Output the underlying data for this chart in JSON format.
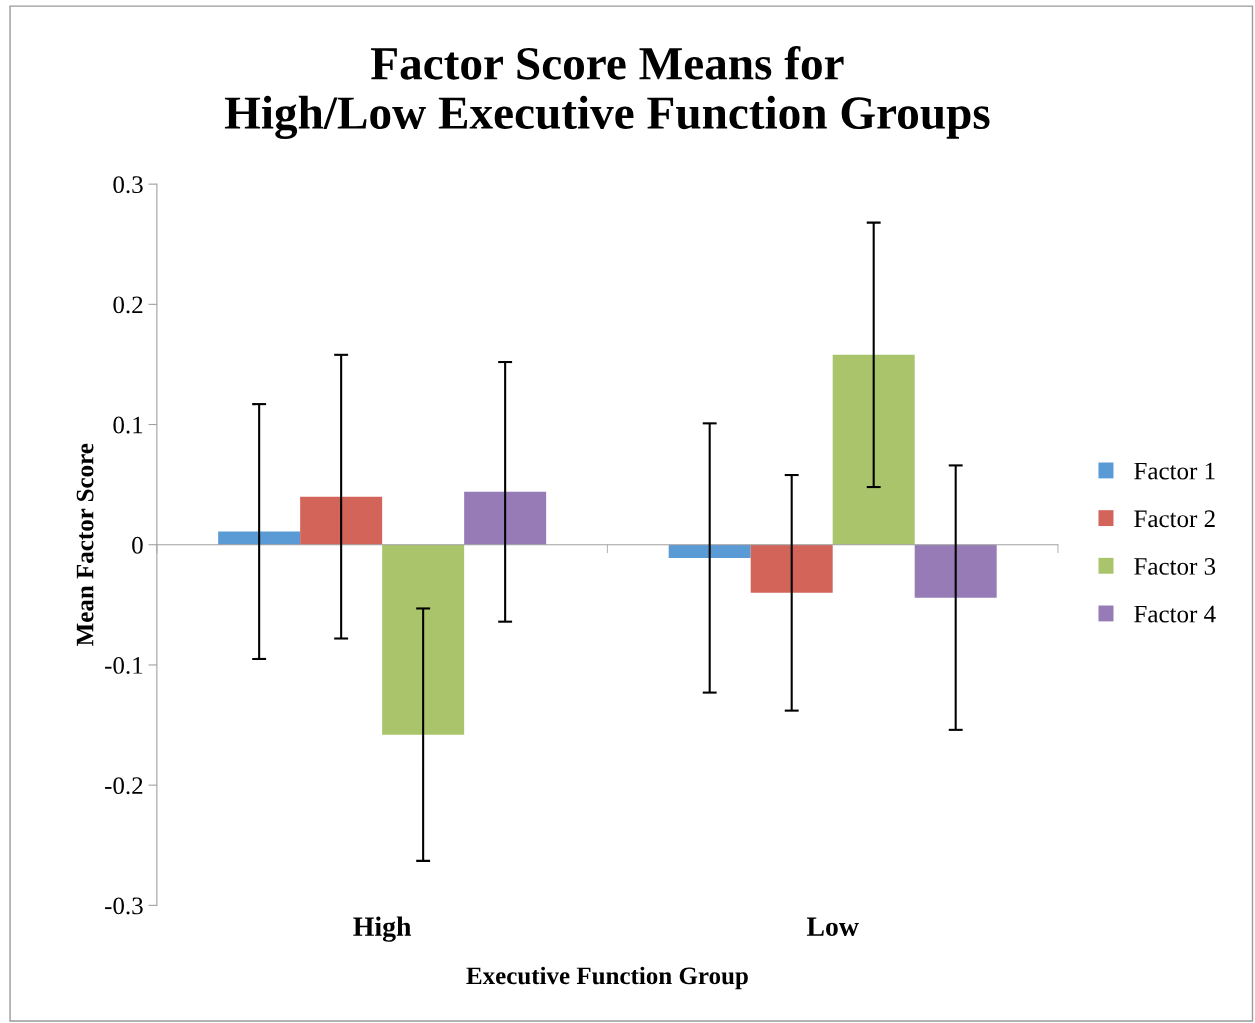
{
  "chart_data": {
    "type": "bar",
    "title": "Factor Score Means for\nHigh/Low Executive Function Groups",
    "xlabel": "Executive Function Group",
    "ylabel": "Mean Factor Score",
    "categories": [
      "High",
      "Low"
    ],
    "series": [
      {
        "name": "Factor 1",
        "color": "#5b9bd5",
        "values": [
          0.011,
          -0.011
        ],
        "errors": [
          0.106,
          0.112
        ]
      },
      {
        "name": "Factor 2",
        "color": "#d2645a",
        "values": [
          0.04,
          -0.04
        ],
        "errors": [
          0.118,
          0.098
        ]
      },
      {
        "name": "Factor 3",
        "color": "#a9c46a",
        "values": [
          -0.158,
          0.158
        ],
        "errors": [
          0.105,
          0.11
        ]
      },
      {
        "name": "Factor 4",
        "color": "#967bb6",
        "values": [
          0.044,
          -0.044
        ],
        "errors": [
          0.108,
          0.11
        ]
      }
    ],
    "ylim": [
      -0.3,
      0.3
    ],
    "yticks": [
      -0.3,
      -0.2,
      -0.1,
      0,
      0.1,
      0.2,
      0.3
    ],
    "legend": "right"
  }
}
